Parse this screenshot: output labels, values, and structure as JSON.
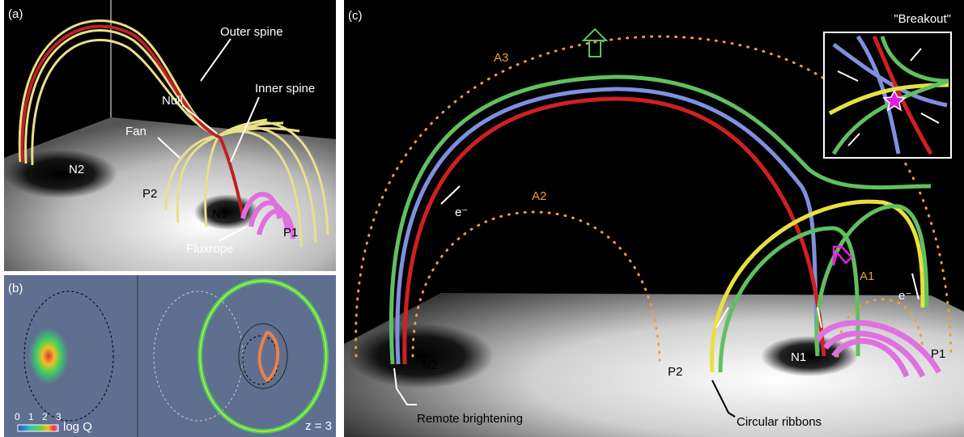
{
  "panel_a": {
    "label": "(a)",
    "annotations": [
      "Outer spine",
      "Null",
      "Inner spine",
      "Fan",
      "N2",
      "P2",
      "N1",
      "P1",
      "Fluxrope"
    ]
  },
  "panel_b": {
    "label": "(b)",
    "colorbar_ticks": [
      "0",
      "1",
      "2",
      "3"
    ],
    "colorbar_label": "log Q",
    "height_label": "z = 3"
  },
  "panel_c": {
    "label": "(c)",
    "inset_title": "\"Breakout\"",
    "arcs": [
      "A3",
      "A2",
      "A1"
    ],
    "electrons": [
      "e⁻",
      "e⁻"
    ],
    "polarities": [
      "N2",
      "P2",
      "N1",
      "P1"
    ],
    "callouts": [
      "Remote brightening",
      "Circular ribbons"
    ]
  }
}
